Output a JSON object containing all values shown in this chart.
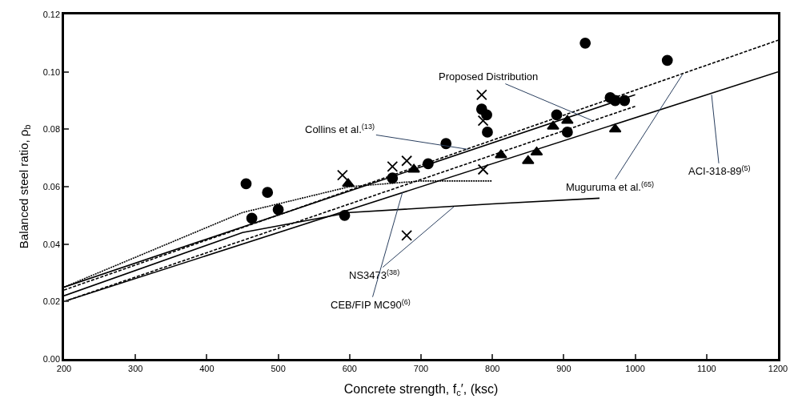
{
  "chart_data": {
    "type": "line",
    "xlabel": "Concrete strength, f$_{c}$′, (ksc)",
    "ylabel": "Balanced steel ratio, ρ$_{b}$",
    "xlim": [
      200,
      1200
    ],
    "ylim": [
      0,
      0.12
    ],
    "xticks": [
      200,
      300,
      400,
      500,
      600,
      700,
      800,
      900,
      1000,
      1100,
      1200
    ],
    "yticks": [
      {
        "value": 0,
        "label": "0.00"
      },
      {
        "value": 0.02,
        "label": "0.02"
      },
      {
        "value": 0.04,
        "label": "0.04"
      },
      {
        "value": 0.06,
        "label": "0.06"
      },
      {
        "value": 0.08,
        "label": "0.08"
      },
      {
        "value": 0.1,
        "label": "0.10"
      },
      {
        "value": 0.12,
        "label": "0.12"
      }
    ],
    "series": [
      {
        "color": "#000000",
        "line_style": "solid",
        "x": [
          200,
          1200
        ],
        "values": [
          0.02,
          0.1
        ]
      },
      {
        "color": "#000000",
        "line_style": "dashed",
        "x": [
          200,
          1200
        ],
        "values": [
          0.024,
          0.111
        ]
      },
      {
        "color": "#000000",
        "line_style": "solid",
        "x": [
          200,
          450,
          600,
          800,
          950
        ],
        "values": [
          0.022,
          0.044,
          0.051,
          0.054,
          0.056
        ]
      },
      {
        "color": "#000000",
        "line_style": "dotted",
        "x": [
          200,
          450,
          600,
          700,
          800
        ],
        "values": [
          0.025,
          0.051,
          0.06,
          0.062,
          0.062
        ]
      },
      {
        "color": "#000000",
        "line_style": "solid",
        "x": [
          200,
          1000
        ],
        "values": [
          0.025,
          0.092
        ]
      },
      {
        "color": "#000000",
        "line_style": "dashed",
        "x": [
          200,
          1000
        ],
        "values": [
          0.02,
          0.088
        ]
      },
      {
        "type": "scatter",
        "color": "#000000",
        "marker": "circle",
        "x": [
          455,
          463,
          485,
          500,
          593,
          660,
          710,
          735,
          785,
          792,
          793,
          930,
          890,
          905,
          965,
          972,
          985,
          1045
        ],
        "values": [
          0.061,
          0.049,
          0.058,
          0.052,
          0.05,
          0.063,
          0.068,
          0.075,
          0.087,
          0.085,
          0.079,
          0.11,
          0.085,
          0.079,
          0.091,
          0.09,
          0.09,
          0.104
        ]
      },
      {
        "type": "scatter",
        "color": "#000000",
        "marker": "triangle",
        "x": [
          598,
          690,
          812,
          850,
          862,
          885,
          905,
          972
        ],
        "values": [
          0.061,
          0.066,
          0.071,
          0.069,
          0.072,
          0.081,
          0.083,
          0.08
        ]
      },
      {
        "type": "scatter",
        "color": "#000000",
        "marker": "cross",
        "x": [
          590,
          660,
          680,
          785,
          787,
          787,
          680
        ],
        "values": [
          0.064,
          0.067,
          0.069,
          0.092,
          0.083,
          0.066,
          0.043
        ]
      }
    ],
    "annotations": [
      {
        "text": "Proposed Distribution",
        "x": 940,
        "y": 0.083
      },
      {
        "text": "Collins et al.$^{(13)}$",
        "x": 766,
        "y": 0.073
      },
      {
        "text": "ACI-318-89$^{(5)}$",
        "x": 1107,
        "y": 0.092
      },
      {
        "text": "Muguruma et al.$^{(65)}$",
        "x": 1066,
        "y": 0.099
      },
      {
        "text": "NS3473$^{(38)}$",
        "x": 746,
        "y": 0.053
      },
      {
        "text": "CEB/FIP MC90$^{(6)}$",
        "x": 674,
        "y": 0.058
      }
    ]
  }
}
